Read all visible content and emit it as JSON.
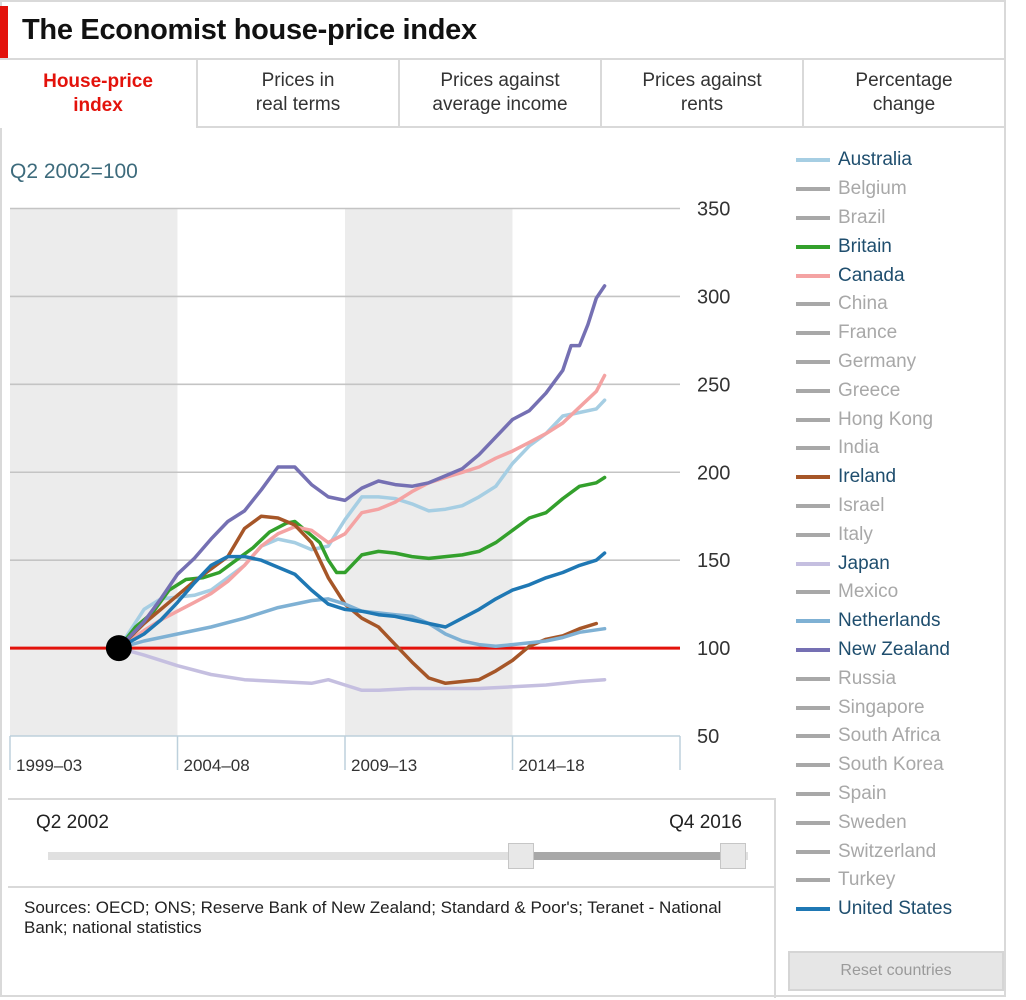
{
  "header": {
    "title": "The Economist house-price index"
  },
  "tabs": [
    {
      "label": "House-price\nindex",
      "active": true
    },
    {
      "label": "Prices in\nreal terms",
      "active": false
    },
    {
      "label": "Prices against\naverage income",
      "active": false
    },
    {
      "label": "Prices against\nrents",
      "active": false
    },
    {
      "label": "Percentage\nchange",
      "active": false
    }
  ],
  "legend": [
    {
      "name": "Australia",
      "color": "#a6cee3",
      "active": true
    },
    {
      "name": "Belgium",
      "active": false
    },
    {
      "name": "Brazil",
      "active": false
    },
    {
      "name": "Britain",
      "color": "#33a02c",
      "active": true
    },
    {
      "name": "Canada",
      "color": "#f4a3a3",
      "active": true
    },
    {
      "name": "China",
      "active": false
    },
    {
      "name": "France",
      "active": false
    },
    {
      "name": "Germany",
      "active": false
    },
    {
      "name": "Greece",
      "active": false
    },
    {
      "name": "Hong Kong",
      "active": false
    },
    {
      "name": "India",
      "active": false
    },
    {
      "name": "Ireland",
      "color": "#a65628",
      "active": true
    },
    {
      "name": "Israel",
      "active": false
    },
    {
      "name": "Italy",
      "active": false
    },
    {
      "name": "Japan",
      "color": "#c5bfe0",
      "active": true
    },
    {
      "name": "Mexico",
      "active": false
    },
    {
      "name": "Netherlands",
      "color": "#7fb1d4",
      "active": true
    },
    {
      "name": "New Zealand",
      "color": "#7570b3",
      "active": true
    },
    {
      "name": "Russia",
      "active": false
    },
    {
      "name": "Singapore",
      "active": false
    },
    {
      "name": "South Africa",
      "active": false
    },
    {
      "name": "South Korea",
      "active": false
    },
    {
      "name": "Spain",
      "active": false
    },
    {
      "name": "Sweden",
      "active": false
    },
    {
      "name": "Switzerland",
      "active": false
    },
    {
      "name": "Turkey",
      "active": false
    },
    {
      "name": "United States",
      "color": "#1f78b4",
      "active": true
    }
  ],
  "slider": {
    "start_label": "Q2 2002",
    "end_label": "Q4 2016"
  },
  "sources": "Sources: OECD; ONS; Reserve Bank of New Zealand; Standard & Poor's; Teranet - National Bank; national statistics",
  "reset_label": "Reset countries",
  "chart_data": {
    "type": "line",
    "title": "The Economist house-price index",
    "subtitle": "Q2 2002=100",
    "ylim": [
      50,
      350
    ],
    "yticks": [
      350,
      300,
      250,
      200,
      150,
      100,
      50
    ],
    "xlim": [
      1999,
      2019
    ],
    "x_bands": [
      {
        "label": "1999–03",
        "start": 1999,
        "end": 2004,
        "shaded": true
      },
      {
        "label": "2004–08",
        "start": 2004,
        "end": 2009,
        "shaded": false
      },
      {
        "label": "2009–13",
        "start": 2009,
        "end": 2014,
        "shaded": true
      },
      {
        "label": "2014–18",
        "start": 2014,
        "end": 2019,
        "shaded": false
      }
    ],
    "baseline": {
      "value": 100,
      "color": "#e3120b"
    },
    "base_point": {
      "x": 2002.25,
      "y": 100
    },
    "series": [
      {
        "name": "Australia",
        "color": "#a6cee3",
        "points": [
          [
            2002.25,
            100
          ],
          [
            2003,
            122
          ],
          [
            2003.5,
            128
          ],
          [
            2004,
            129
          ],
          [
            2004.5,
            130
          ],
          [
            2005,
            133
          ],
          [
            2006,
            147
          ],
          [
            2006.5,
            158
          ],
          [
            2007,
            162
          ],
          [
            2007.5,
            160
          ],
          [
            2008,
            156
          ],
          [
            2008.5,
            158
          ],
          [
            2009,
            173
          ],
          [
            2009.5,
            186
          ],
          [
            2010,
            186
          ],
          [
            2010.5,
            185
          ],
          [
            2011,
            182
          ],
          [
            2011.5,
            178
          ],
          [
            2012,
            179
          ],
          [
            2012.5,
            181
          ],
          [
            2013,
            186
          ],
          [
            2013.5,
            192
          ],
          [
            2014,
            205
          ],
          [
            2014.5,
            215
          ],
          [
            2015,
            222
          ],
          [
            2015.5,
            232
          ],
          [
            2016,
            234
          ],
          [
            2016.5,
            236
          ],
          [
            2016.75,
            241
          ]
        ]
      },
      {
        "name": "Britain",
        "color": "#33a02c",
        "points": [
          [
            2002.25,
            100
          ],
          [
            2002.75,
            112
          ],
          [
            2003.25,
            120
          ],
          [
            2003.75,
            133
          ],
          [
            2004.25,
            139
          ],
          [
            2004.75,
            140
          ],
          [
            2005.25,
            143
          ],
          [
            2005.75,
            150
          ],
          [
            2006.25,
            157
          ],
          [
            2006.75,
            166
          ],
          [
            2007.25,
            171
          ],
          [
            2007.5,
            172
          ],
          [
            2007.75,
            168
          ],
          [
            2008.25,
            160
          ],
          [
            2008.5,
            150
          ],
          [
            2008.75,
            143
          ],
          [
            2009,
            143
          ],
          [
            2009.25,
            148
          ],
          [
            2009.5,
            153
          ],
          [
            2010,
            155
          ],
          [
            2010.5,
            154
          ],
          [
            2011,
            152
          ],
          [
            2011.5,
            151
          ],
          [
            2012,
            152
          ],
          [
            2012.5,
            153
          ],
          [
            2013,
            155
          ],
          [
            2013.5,
            160
          ],
          [
            2014,
            167
          ],
          [
            2014.5,
            174
          ],
          [
            2015,
            177
          ],
          [
            2015.5,
            185
          ],
          [
            2016,
            192
          ],
          [
            2016.5,
            194
          ],
          [
            2016.75,
            197
          ]
        ]
      },
      {
        "name": "Canada",
        "color": "#f4a3a3",
        "points": [
          [
            2002.25,
            100
          ],
          [
            2003,
            110
          ],
          [
            2003.5,
            116
          ],
          [
            2004,
            121
          ],
          [
            2004.5,
            126
          ],
          [
            2005,
            131
          ],
          [
            2005.5,
            138
          ],
          [
            2006,
            147
          ],
          [
            2006.5,
            158
          ],
          [
            2007,
            165
          ],
          [
            2007.5,
            169
          ],
          [
            2008,
            167
          ],
          [
            2008.5,
            160
          ],
          [
            2009,
            165
          ],
          [
            2009.5,
            177
          ],
          [
            2010,
            179
          ],
          [
            2010.5,
            183
          ],
          [
            2011,
            189
          ],
          [
            2011.5,
            194
          ],
          [
            2012,
            197
          ],
          [
            2012.5,
            200
          ],
          [
            2013,
            203
          ],
          [
            2013.5,
            208
          ],
          [
            2014,
            212
          ],
          [
            2014.5,
            217
          ],
          [
            2015,
            222
          ],
          [
            2015.5,
            228
          ],
          [
            2016,
            237
          ],
          [
            2016.5,
            246
          ],
          [
            2016.75,
            255
          ]
        ]
      },
      {
        "name": "Ireland",
        "color": "#a65628",
        "points": [
          [
            2002.25,
            100
          ],
          [
            2003,
            114
          ],
          [
            2003.5,
            122
          ],
          [
            2004,
            130
          ],
          [
            2004.5,
            138
          ],
          [
            2005,
            145
          ],
          [
            2005.5,
            152
          ],
          [
            2006,
            168
          ],
          [
            2006.5,
            175
          ],
          [
            2007,
            174
          ],
          [
            2007.5,
            170
          ],
          [
            2008,
            160
          ],
          [
            2008.5,
            140
          ],
          [
            2009,
            125
          ],
          [
            2009.5,
            117
          ],
          [
            2010,
            112
          ],
          [
            2010.5,
            102
          ],
          [
            2011,
            92
          ],
          [
            2011.5,
            83
          ],
          [
            2012,
            80
          ],
          [
            2012.5,
            81
          ],
          [
            2013,
            82
          ],
          [
            2013.5,
            87
          ],
          [
            2014,
            93
          ],
          [
            2014.5,
            101
          ],
          [
            2015,
            105
          ],
          [
            2015.5,
            107
          ],
          [
            2016,
            111
          ],
          [
            2016.5,
            114
          ]
        ]
      },
      {
        "name": "Japan",
        "color": "#c5bfe0",
        "points": [
          [
            2002.25,
            100
          ],
          [
            2003,
            96
          ],
          [
            2004,
            90
          ],
          [
            2005,
            85
          ],
          [
            2006,
            82
          ],
          [
            2007,
            81
          ],
          [
            2008,
            80
          ],
          [
            2008.5,
            82
          ],
          [
            2009,
            79
          ],
          [
            2009.5,
            76
          ],
          [
            2010,
            76
          ],
          [
            2011,
            77
          ],
          [
            2012,
            77
          ],
          [
            2013,
            77
          ],
          [
            2014,
            78
          ],
          [
            2015,
            79
          ],
          [
            2016,
            81
          ],
          [
            2016.75,
            82
          ]
        ]
      },
      {
        "name": "Netherlands",
        "color": "#7fb1d4",
        "points": [
          [
            2002.25,
            100
          ],
          [
            2003,
            104
          ],
          [
            2004,
            108
          ],
          [
            2005,
            112
          ],
          [
            2006,
            117
          ],
          [
            2007,
            123
          ],
          [
            2008,
            127
          ],
          [
            2008.5,
            128
          ],
          [
            2009,
            125
          ],
          [
            2009.5,
            121
          ],
          [
            2010,
            120
          ],
          [
            2010.5,
            119
          ],
          [
            2011,
            118
          ],
          [
            2011.5,
            114
          ],
          [
            2012,
            108
          ],
          [
            2012.5,
            104
          ],
          [
            2013,
            102
          ],
          [
            2013.5,
            101
          ],
          [
            2014,
            102
          ],
          [
            2015,
            104
          ],
          [
            2015.5,
            106
          ],
          [
            2016,
            109
          ],
          [
            2016.75,
            111
          ]
        ]
      },
      {
        "name": "New Zealand",
        "color": "#7570b3",
        "points": [
          [
            2002.25,
            100
          ],
          [
            2003,
            115
          ],
          [
            2003.5,
            128
          ],
          [
            2004,
            142
          ],
          [
            2004.5,
            151
          ],
          [
            2005,
            162
          ],
          [
            2005.5,
            172
          ],
          [
            2006,
            178
          ],
          [
            2006.5,
            190
          ],
          [
            2007,
            203
          ],
          [
            2007.5,
            203
          ],
          [
            2008,
            193
          ],
          [
            2008.5,
            186
          ],
          [
            2009,
            184
          ],
          [
            2009.5,
            191
          ],
          [
            2010,
            195
          ],
          [
            2010.5,
            193
          ],
          [
            2011,
            192
          ],
          [
            2011.5,
            194
          ],
          [
            2012,
            198
          ],
          [
            2012.5,
            202
          ],
          [
            2013,
            210
          ],
          [
            2013.5,
            220
          ],
          [
            2014,
            230
          ],
          [
            2014.5,
            235
          ],
          [
            2015,
            245
          ],
          [
            2015.5,
            258
          ],
          [
            2015.75,
            272
          ],
          [
            2016,
            272
          ],
          [
            2016.25,
            284
          ],
          [
            2016.5,
            299
          ],
          [
            2016.75,
            306
          ]
        ]
      },
      {
        "name": "United States",
        "color": "#1f78b4",
        "points": [
          [
            2002.25,
            100
          ],
          [
            2003,
            108
          ],
          [
            2003.5,
            116
          ],
          [
            2004,
            126
          ],
          [
            2004.5,
            137
          ],
          [
            2005,
            147
          ],
          [
            2005.5,
            152
          ],
          [
            2006,
            152
          ],
          [
            2006.5,
            150
          ],
          [
            2007,
            146
          ],
          [
            2007.5,
            142
          ],
          [
            2008,
            133
          ],
          [
            2008.5,
            125
          ],
          [
            2009,
            122
          ],
          [
            2009.5,
            121
          ],
          [
            2010,
            119
          ],
          [
            2010.5,
            118
          ],
          [
            2011,
            116
          ],
          [
            2011.5,
            114
          ],
          [
            2012,
            112
          ],
          [
            2012.5,
            117
          ],
          [
            2013,
            122
          ],
          [
            2013.5,
            128
          ],
          [
            2014,
            133
          ],
          [
            2014.5,
            136
          ],
          [
            2015,
            140
          ],
          [
            2015.5,
            143
          ],
          [
            2016,
            147
          ],
          [
            2016.5,
            150
          ],
          [
            2016.75,
            154
          ]
        ]
      }
    ]
  }
}
